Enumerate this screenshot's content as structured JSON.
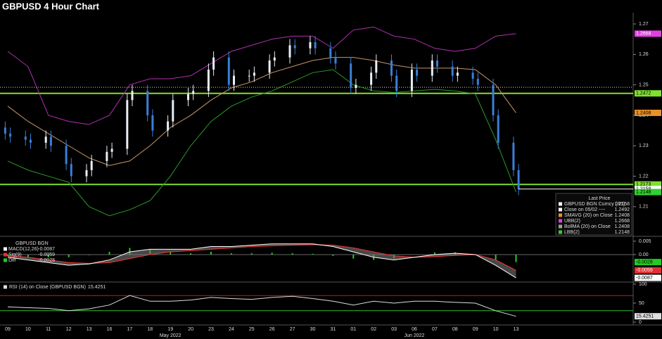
{
  "chart_data": [
    {
      "type": "candlestick",
      "title": "GBPUSD 4 Hour Chart",
      "categories": [
        "09",
        "10",
        "11",
        "12",
        "13",
        "16",
        "17",
        "18",
        "19",
        "20",
        "23",
        "24",
        "25",
        "26",
        "27",
        "30",
        "31",
        "01",
        "02",
        "03",
        "06",
        "07",
        "08",
        "09",
        "10",
        "13"
      ],
      "month_labels": [
        "May 2022",
        "Jun 2022"
      ],
      "ylim": [
        1.2005,
        1.2737
      ],
      "yticks": [
        1.21,
        1.22,
        1.23,
        1.24,
        1.25,
        1.26,
        1.27
      ],
      "candles": {
        "open": [
          1.236,
          1.234,
          1.233,
          1.232,
          1.231,
          1.233,
          1.23,
          1.224,
          1.22,
          1.222,
          1.225,
          1.228,
          1.229,
          1.245,
          1.248,
          1.24,
          1.235,
          1.238,
          1.245,
          1.247,
          1.248,
          1.255,
          1.259,
          1.25,
          1.253,
          1.253,
          1.254,
          1.258,
          1.259,
          1.263,
          1.262,
          1.264,
          1.262,
          1.259,
          1.257,
          1.249,
          1.25,
          1.254,
          1.258,
          1.253,
          1.248,
          1.255,
          1.253,
          1.258,
          1.256,
          1.253,
          1.254,
          1.252,
          1.25,
          1.24,
          1.231,
          1.222
        ],
        "high": [
          1.238,
          1.236,
          1.235,
          1.234,
          1.235,
          1.235,
          1.232,
          1.226,
          1.224,
          1.227,
          1.23,
          1.231,
          1.247,
          1.25,
          1.25,
          1.242,
          1.24,
          1.247,
          1.249,
          1.25,
          1.257,
          1.261,
          1.261,
          1.255,
          1.255,
          1.256,
          1.26,
          1.261,
          1.265,
          1.265,
          1.266,
          1.266,
          1.264,
          1.261,
          1.259,
          1.252,
          1.256,
          1.26,
          1.26,
          1.255,
          1.257,
          1.257,
          1.26,
          1.26,
          1.258,
          1.256,
          1.256,
          1.254,
          1.252,
          1.242,
          1.233,
          1.224
        ],
        "low": [
          1.232,
          1.231,
          1.23,
          1.229,
          1.229,
          1.228,
          1.222,
          1.218,
          1.218,
          1.22,
          1.223,
          1.226,
          1.227,
          1.243,
          1.238,
          1.233,
          1.233,
          1.236,
          1.243,
          1.245,
          1.246,
          1.253,
          1.248,
          1.248,
          1.251,
          1.251,
          1.252,
          1.256,
          1.257,
          1.26,
          1.26,
          1.26,
          1.257,
          1.255,
          1.247,
          1.247,
          1.248,
          1.252,
          1.251,
          1.246,
          1.246,
          1.251,
          1.251,
          1.254,
          1.251,
          1.251,
          1.25,
          1.248,
          1.238,
          1.229,
          1.22,
          1.2138
        ],
        "close": [
          1.234,
          1.233,
          1.232,
          1.231,
          1.233,
          1.23,
          1.224,
          1.22,
          1.222,
          1.225,
          1.228,
          1.229,
          1.245,
          1.248,
          1.24,
          1.235,
          1.238,
          1.245,
          1.247,
          1.248,
          1.255,
          1.259,
          1.25,
          1.253,
          1.253,
          1.254,
          1.258,
          1.259,
          1.263,
          1.262,
          1.264,
          1.262,
          1.259,
          1.257,
          1.249,
          1.25,
          1.254,
          1.258,
          1.253,
          1.248,
          1.255,
          1.253,
          1.258,
          1.256,
          1.253,
          1.254,
          1.252,
          1.25,
          1.24,
          1.231,
          1.222,
          1.2158
        ],
        "up_color": "#e8eef5",
        "down_color": "#3a7fd8"
      },
      "series": [
        {
          "name": "SMAVG",
          "color": "#c8966a",
          "values": [
            1.243,
            1.238,
            1.234,
            1.23,
            1.226,
            1.2235,
            1.225,
            1.23,
            1.236,
            1.24,
            1.245,
            1.249,
            1.251,
            1.254,
            1.256,
            1.258,
            1.259,
            1.259,
            1.258,
            1.2565,
            1.2555,
            1.2555,
            1.2555,
            1.255,
            1.25,
            1.2408
          ]
        },
        {
          "name": "UBB",
          "color": "#b030b0",
          "values": [
            1.261,
            1.256,
            1.24,
            1.238,
            1.237,
            1.24,
            1.25,
            1.252,
            1.252,
            1.253,
            1.257,
            1.261,
            1.263,
            1.265,
            1.266,
            1.266,
            1.262,
            1.268,
            1.269,
            1.266,
            1.265,
            1.262,
            1.261,
            1.262,
            1.266,
            1.2668
          ]
        },
        {
          "name": "LBB",
          "color": "#2a9a2a",
          "values": [
            1.225,
            1.222,
            1.22,
            1.218,
            1.21,
            1.207,
            1.209,
            1.212,
            1.22,
            1.23,
            1.238,
            1.243,
            1.246,
            1.248,
            1.251,
            1.254,
            1.255,
            1.25,
            1.248,
            1.2475,
            1.248,
            1.2485,
            1.248,
            1.247,
            1.232,
            1.2148
          ]
        }
      ],
      "levels": [
        1.2472,
        1.2173
      ],
      "level_color": "#7fe030",
      "legend_title": "Last Price",
      "legend": [
        {
          "label": "GBPUSD BGN Curncy (R1)",
          "value": 1.2158,
          "color": "#ffffff"
        },
        {
          "label": "Close on 05/02 ----",
          "value": 1.2492,
          "color": "#ffffff"
        },
        {
          "label": "SMAVG (20) on Close",
          "value": 1.2408,
          "color": "#e8902a"
        },
        {
          "label": "UBB(2)",
          "value": 1.2668,
          "color": "#e040e0"
        },
        {
          "label": "BollMA (20) on Close",
          "value": 1.2408,
          "color": "#a0a0a0"
        },
        {
          "label": "LBB(2)",
          "value": 1.2148,
          "color": "#30d030"
        }
      ]
    },
    {
      "type": "macd",
      "title": "GBPUSD BGN",
      "ylim": [
        -0.01,
        0.0063
      ],
      "yticks": [
        0.005,
        {
          "value": 0,
          "label": "0.00"
        }
      ],
      "series": [
        {
          "name": "MACD(12,26)",
          "color": "#ffffff",
          "value": -0.0087,
          "values": [
            -0.001,
            -0.002,
            -0.003,
            -0.004,
            -0.0035,
            -0.002,
            0.001,
            0.002,
            0.002,
            0.002,
            0.003,
            0.003,
            0.0035,
            0.004,
            0.004,
            0.004,
            0.003,
            0.001,
            -0.001,
            -0.002,
            -0.001,
            0.0,
            0.0005,
            0.0,
            -0.004,
            -0.0087
          ]
        },
        {
          "name": "Sig(9)",
          "color": "#e03030",
          "value": -0.0059,
          "values": [
            -0.0005,
            -0.001,
            -0.002,
            -0.003,
            -0.0033,
            -0.003,
            -0.0015,
            0.0,
            0.001,
            0.0015,
            0.002,
            0.0025,
            0.003,
            0.0033,
            0.0035,
            0.0037,
            0.0035,
            0.0025,
            0.001,
            -0.0005,
            -0.001,
            -0.0008,
            -0.0003,
            0.0,
            -0.002,
            -0.0059
          ]
        },
        {
          "name": "Diff",
          "color": "#22cc22",
          "value": -0.0028,
          "values": [
            -0.0005,
            -0.001,
            -0.001,
            -0.001,
            -0.0002,
            0.001,
            0.0025,
            0.002,
            0.001,
            0.0005,
            0.001,
            0.0005,
            0.0005,
            0.0007,
            0.0005,
            0.0003,
            -0.0005,
            -0.0015,
            -0.002,
            -0.0015,
            0.0,
            0.0008,
            0.0008,
            0.0,
            -0.002,
            -0.0028
          ]
        }
      ]
    },
    {
      "type": "rsi",
      "title": "RSI (14) on Close (GBPUSD BGN)",
      "value": 15.4251,
      "color": "#dddddd",
      "ylim": [
        0,
        100
      ],
      "yticks": [
        0,
        50,
        100
      ],
      "levels": [
        {
          "value": 70,
          "color": "#c02020"
        },
        {
          "value": 30,
          "color": "#30c030"
        }
      ],
      "values": [
        40,
        38,
        36,
        30,
        35,
        45,
        70,
        55,
        55,
        58,
        65,
        62,
        60,
        65,
        68,
        62,
        55,
        45,
        55,
        50,
        55,
        55,
        52,
        50,
        30,
        15.4251
      ]
    }
  ]
}
